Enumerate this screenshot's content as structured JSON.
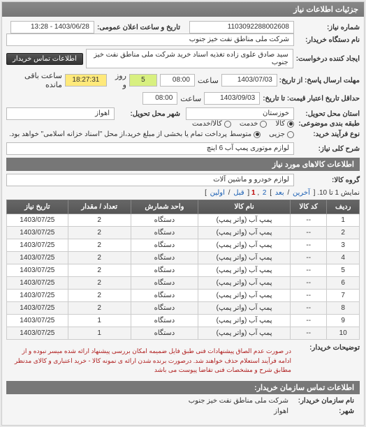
{
  "header": {
    "title": "جزئیات اطلاعات نیاز"
  },
  "meta": {
    "need_number_label": "شماره نیاز:",
    "need_number": "1103092288002608",
    "date_label": "تاریخ و ساعت اعلان عمومی:",
    "date_value": "1403/06/28 - 13:28",
    "buyer_label": "نام دستگاه خریدار:",
    "buyer_value": "شرکت ملی مناطق نفت خیز جنوب",
    "creator_label": "ایجاد کننده درخواست:",
    "creator_value": "سید صادق علوی زاده  تغذیه اسناد خرید  شرکت ملی مناطق نفت خیز جنوب",
    "contact_btn": "اطلاعات تماس خریدار",
    "deadline1_label": "مهلت ارسال پاسخ: از تاریخ:",
    "deadline1_date": "1403/07/03",
    "time_lbl": "ساعت",
    "deadline1_time": "08:00",
    "days_lbl": "روز و",
    "days_val": "5",
    "remain_time": "18:27:31",
    "remain_lbl": "ساعت باقی مانده",
    "deadline2_label": "حداقل تاریخ اعتبار قیمت: تا تاریخ:",
    "deadline2_date": "1403/09/03",
    "deadline2_time": "08:00",
    "state_label": "استان محل تحویل:",
    "state_value": "خوزستان",
    "city_label": "شهر محل تحویل:",
    "city_value": "اهواز",
    "subject_class_label": "طبقه بندی موضوعی:",
    "radio_goods": "کالا",
    "radio_service": "خدمت",
    "radio_both": "کالا/خدمت",
    "process_type_label": "نوع فرآیند خرید:",
    "radio_partial": "جزیی",
    "radio_medium": "متوسط",
    "process_note": "پرداخت تمام یا بخشی از مبلغ خرید،از محل \"اسناد خزانه اسلامی\" خواهد بود."
  },
  "need_desc": {
    "label": "شرح کلی نیاز:",
    "value": "لوازم موتوری پمپ آب 6 اینچ"
  },
  "goods_section": {
    "title": "اطلاعات کالاهای مورد نیاز",
    "group_label": "گروه کالا:",
    "group_value": "لوازم خودرو و ماشین آلات",
    "pager_prefix": "نمایش 1 تا 10. [",
    "pager_last": "آخرین",
    "pager_next": "بعد",
    "pager_sep": "/",
    "pager_close": "]",
    "pager_p2": "2",
    "pager_p1": "1",
    "pager_brk": ",",
    "pager_prev": "قبل",
    "pager_first": "اولین",
    "columns": [
      "ردیف",
      "کد کالا",
      "نام کالا",
      "واحد شمارش",
      "تعداد / مقدار",
      "تاریخ نیاز"
    ],
    "rows": [
      [
        "1",
        "--",
        "پمپ آب (واتر پمپ)",
        "دستگاه",
        "2",
        "1403/07/25"
      ],
      [
        "2",
        "--",
        "پمپ آب (واتر پمپ)",
        "دستگاه",
        "2",
        "1403/07/25"
      ],
      [
        "3",
        "--",
        "پمپ آب (واتر پمپ)",
        "دستگاه",
        "2",
        "1403/07/25"
      ],
      [
        "4",
        "--",
        "پمپ آب (واتر پمپ)",
        "دستگاه",
        "2",
        "1403/07/25"
      ],
      [
        "5",
        "--",
        "پمپ آب (واتر پمپ)",
        "دستگاه",
        "2",
        "1403/07/25"
      ],
      [
        "6",
        "--",
        "پمپ آب (واتر پمپ)",
        "دستگاه",
        "2",
        "1403/07/25"
      ],
      [
        "7",
        "--",
        "پمپ آب (واتر پمپ)",
        "دستگاه",
        "2",
        "1403/07/25"
      ],
      [
        "8",
        "--",
        "پمپ آب (واتر پمپ)",
        "دستگاه",
        "2",
        "1403/07/25"
      ],
      [
        "9",
        "--",
        "پمپ آب (واتر پمپ)",
        "دستگاه",
        "1",
        "1403/07/25"
      ],
      [
        "10",
        "--",
        "پمپ آب (واتر پمپ)",
        "دستگاه",
        "1",
        "1403/07/25"
      ]
    ]
  },
  "notes": {
    "label": "توضیحات خریدار:",
    "text": "در صورت عدم الصاق پیشنهادات فنی طبق فایل ضمیمه امکان بررسی پیشنهاد ارائه شده میسر نبوده و از ادامه فرآیند استعلام حذف خواهند شد. درصورت برنده شدن ارائه ی نمونه کالا - خرید اعتباری و کالای مدنظر مطابق شرح و مشخصات فنی تقاضا پیوست می باشد"
  },
  "footer": {
    "title": "اطلاعات تماس سازمان خریدار:",
    "org_label": "نام سازمان خریدار:",
    "org_value": "شرکت ملی مناطق نفت خیز جنوب",
    "city_label": "شهر:",
    "city_value": "اهواز"
  },
  "colors": {
    "header_bg": "#777",
    "panel_bg": "#f5f5f5",
    "accent_green": "#d8f080",
    "accent_yellow": "#ffe97a"
  }
}
